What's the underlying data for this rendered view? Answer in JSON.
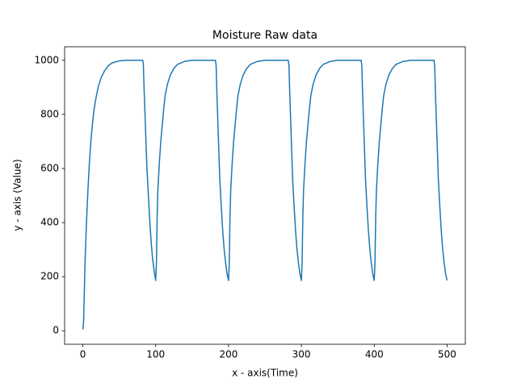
{
  "chart_data": {
    "type": "line",
    "title": "Moisture Raw data",
    "xlabel": "x - axis(Time)",
    "ylabel": "y - axis (Value)",
    "color": "#1f77b4",
    "grid": false,
    "xlim": [
      -25,
      525
    ],
    "ylim": [
      -50,
      1050
    ],
    "xticks": [
      0,
      100,
      200,
      300,
      400,
      500
    ],
    "yticks": [
      0,
      200,
      400,
      600,
      800,
      1000
    ],
    "x": [
      0,
      1,
      2,
      3,
      5,
      7,
      9,
      11,
      13,
      15,
      18,
      21,
      25,
      30,
      35,
      40,
      50,
      60,
      82,
      83,
      84,
      86,
      88,
      90,
      92,
      94,
      96,
      98,
      100,
      101,
      102,
      103,
      105,
      107,
      109,
      111,
      113,
      116,
      120,
      125,
      130,
      140,
      150,
      182,
      183,
      184,
      186,
      188,
      190,
      192,
      194,
      196,
      198,
      200,
      201,
      202,
      203,
      205,
      207,
      209,
      211,
      213,
      216,
      220,
      225,
      230,
      240,
      250,
      282,
      283,
      284,
      286,
      288,
      290,
      292,
      294,
      296,
      298,
      300,
      301,
      302,
      303,
      305,
      307,
      309,
      311,
      313,
      316,
      320,
      325,
      330,
      340,
      350,
      382,
      383,
      384,
      386,
      388,
      390,
      392,
      394,
      396,
      398,
      400,
      401,
      402,
      403,
      405,
      407,
      409,
      411,
      413,
      416,
      420,
      425,
      430,
      440,
      450,
      482,
      483,
      484,
      486,
      488,
      490,
      492,
      494,
      496,
      498,
      500
    ],
    "values": [
      5,
      30,
      140,
      250,
      400,
      520,
      620,
      700,
      760,
      810,
      860,
      900,
      935,
      962,
      980,
      990,
      998,
      1000,
      1000,
      990,
      900,
      750,
      600,
      500,
      400,
      320,
      260,
      220,
      186,
      250,
      420,
      520,
      620,
      700,
      760,
      820,
      870,
      910,
      945,
      970,
      985,
      996,
      1000,
      1000,
      980,
      880,
      720,
      560,
      460,
      370,
      300,
      250,
      210,
      186,
      250,
      420,
      520,
      620,
      700,
      760,
      820,
      870,
      910,
      945,
      970,
      985,
      996,
      1000,
      1000,
      980,
      880,
      720,
      560,
      460,
      370,
      300,
      250,
      210,
      186,
      250,
      420,
      520,
      620,
      700,
      760,
      820,
      870,
      910,
      945,
      970,
      985,
      996,
      1000,
      1000,
      980,
      880,
      720,
      560,
      460,
      370,
      300,
      250,
      210,
      186,
      250,
      420,
      520,
      620,
      700,
      760,
      820,
      870,
      910,
      945,
      970,
      985,
      996,
      1000,
      1000,
      980,
      880,
      720,
      560,
      460,
      370,
      300,
      250,
      210,
      186
    ]
  }
}
